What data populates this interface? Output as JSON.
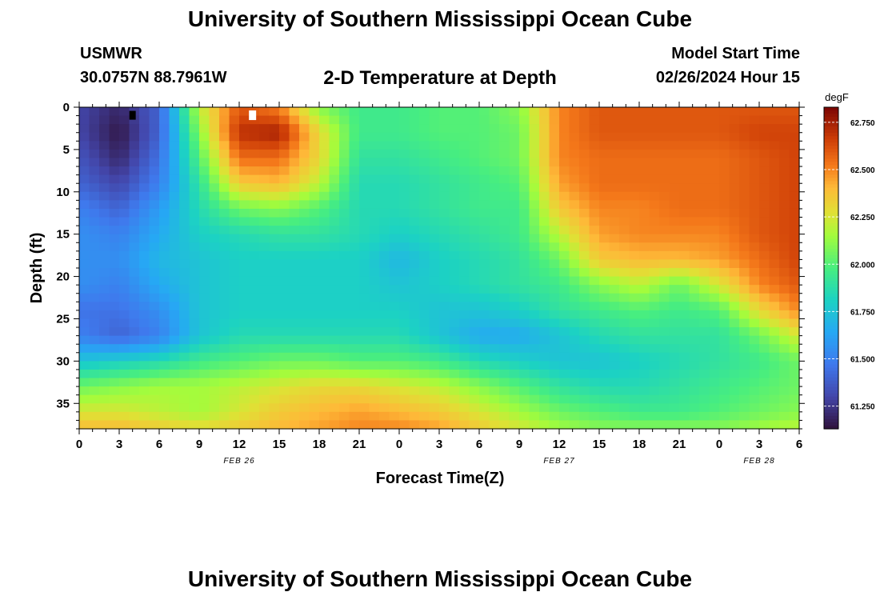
{
  "page": {
    "title": "University of Southern Mississippi Ocean Cube",
    "station": "USMWR",
    "coords": "30.0757N  88.7961W",
    "chart_title": "2-D Temperature at Depth",
    "model_label": "Model Start Time",
    "model_time": "02/26/2024 Hour 15",
    "bottom_title": "University of Southern Mississippi Ocean Cube"
  },
  "chart_data": {
    "type": "heatmap",
    "title": "2-D Temperature at Depth",
    "xlabel": "Forecast Time(Z)",
    "ylabel": "Depth (ft)",
    "xlim": [
      0,
      54
    ],
    "ylim": [
      0,
      38
    ],
    "x_ticks": [
      0,
      3,
      6,
      9,
      12,
      15,
      18,
      21,
      24,
      27,
      30,
      33,
      36,
      39,
      42,
      45,
      48,
      51,
      54
    ],
    "x_tick_labels": [
      "0",
      "3",
      "6",
      "9",
      "12",
      "15",
      "18",
      "21",
      "0",
      "3",
      "6",
      "9",
      "12",
      "15",
      "18",
      "21",
      "0",
      "3",
      "6"
    ],
    "y_ticks": [
      0,
      5,
      10,
      15,
      20,
      25,
      30,
      35
    ],
    "y_tick_labels": [
      "0",
      "5",
      "10",
      "15",
      "20",
      "25",
      "30",
      "35"
    ],
    "date_labels": [
      {
        "x": 12,
        "label": "FEB 26"
      },
      {
        "x": 36,
        "label": "FEB 27"
      },
      {
        "x": 51,
        "label": "FEB 28"
      }
    ],
    "colorbar": {
      "units": "degF",
      "range": [
        61.13,
        62.83
      ],
      "ticks": [
        61.25,
        61.5,
        61.75,
        62.0,
        62.25,
        62.5,
        62.75
      ],
      "tick_labels": [
        "61.250",
        "61.500",
        "61.750",
        "62.000",
        "62.250",
        "62.500",
        "62.750"
      ]
    },
    "markers": [
      {
        "x": 4,
        "depth": 1,
        "color": "#000000"
      },
      {
        "x": 13,
        "depth": 1,
        "color": "#ffffff"
      }
    ],
    "grid": {
      "x": [
        0,
        3,
        6,
        9,
        12,
        15,
        18,
        21,
        24,
        27,
        30,
        33,
        36,
        39,
        42,
        45,
        48,
        51,
        54
      ],
      "depth": [
        0,
        3,
        6,
        9,
        12,
        15,
        18,
        21,
        24,
        27,
        30,
        33,
        36,
        38
      ],
      "values": [
        [
          61.3,
          61.2,
          61.4,
          62.2,
          62.6,
          62.5,
          62.1,
          61.95,
          61.95,
          62.0,
          62.0,
          62.1,
          62.5,
          62.6,
          62.6,
          62.6,
          62.6,
          62.6,
          62.6
        ],
        [
          61.3,
          61.15,
          61.4,
          62.1,
          62.7,
          62.75,
          62.3,
          61.95,
          61.95,
          62.0,
          62.0,
          62.05,
          62.5,
          62.6,
          62.6,
          62.6,
          62.6,
          62.65,
          62.65
        ],
        [
          61.35,
          61.2,
          61.45,
          62.0,
          62.55,
          62.55,
          62.3,
          61.9,
          61.9,
          61.95,
          62.0,
          62.05,
          62.5,
          62.55,
          62.55,
          62.55,
          62.55,
          62.6,
          62.65
        ],
        [
          61.4,
          61.3,
          61.5,
          61.9,
          62.35,
          62.4,
          62.2,
          61.85,
          61.85,
          61.9,
          61.95,
          62.0,
          62.45,
          62.55,
          62.55,
          62.55,
          62.55,
          62.6,
          62.65
        ],
        [
          61.5,
          61.4,
          61.6,
          61.85,
          62.05,
          62.1,
          62.0,
          61.85,
          61.85,
          61.9,
          61.95,
          61.95,
          62.35,
          62.5,
          62.5,
          62.55,
          62.55,
          62.6,
          62.65
        ],
        [
          61.55,
          61.5,
          61.65,
          61.8,
          61.85,
          61.9,
          61.9,
          61.85,
          61.8,
          61.85,
          61.9,
          61.95,
          62.2,
          62.45,
          62.5,
          62.5,
          62.5,
          62.6,
          62.65
        ],
        [
          61.55,
          61.55,
          61.7,
          61.75,
          61.8,
          61.8,
          61.8,
          61.8,
          61.7,
          61.8,
          61.85,
          61.9,
          62.05,
          62.35,
          62.4,
          62.4,
          62.45,
          62.55,
          62.65
        ],
        [
          61.55,
          61.5,
          61.65,
          61.75,
          61.8,
          61.8,
          61.8,
          61.8,
          61.75,
          61.8,
          61.85,
          61.9,
          61.95,
          62.1,
          62.2,
          62.05,
          62.25,
          62.5,
          62.6
        ],
        [
          61.45,
          61.45,
          61.55,
          61.75,
          61.8,
          61.8,
          61.8,
          61.8,
          61.8,
          61.75,
          61.75,
          61.8,
          61.9,
          61.95,
          62.0,
          61.95,
          62.0,
          62.3,
          62.5
        ],
        [
          61.5,
          61.4,
          61.5,
          61.75,
          61.85,
          61.85,
          61.85,
          61.85,
          61.85,
          61.75,
          61.65,
          61.65,
          61.75,
          61.85,
          61.9,
          61.9,
          61.9,
          62.05,
          62.25
        ],
        [
          61.75,
          61.8,
          61.85,
          61.95,
          62.0,
          62.05,
          62.05,
          62.0,
          62.0,
          61.95,
          61.85,
          61.8,
          61.75,
          61.75,
          61.8,
          61.85,
          61.9,
          61.95,
          62.05
        ],
        [
          62.05,
          62.1,
          62.15,
          62.15,
          62.2,
          62.25,
          62.3,
          62.3,
          62.25,
          62.2,
          62.1,
          62.0,
          61.9,
          61.85,
          61.85,
          61.9,
          61.95,
          62.0,
          62.05
        ],
        [
          62.25,
          62.25,
          62.2,
          62.15,
          62.25,
          62.35,
          62.4,
          62.45,
          62.4,
          62.35,
          62.25,
          62.15,
          62.05,
          62.0,
          61.95,
          61.95,
          62.0,
          62.05,
          62.1
        ],
        [
          62.4,
          62.4,
          62.35,
          62.3,
          62.35,
          62.4,
          62.45,
          62.5,
          62.5,
          62.45,
          62.35,
          62.25,
          62.15,
          62.1,
          62.1,
          62.1,
          62.1,
          62.15,
          62.2
        ]
      ]
    }
  }
}
